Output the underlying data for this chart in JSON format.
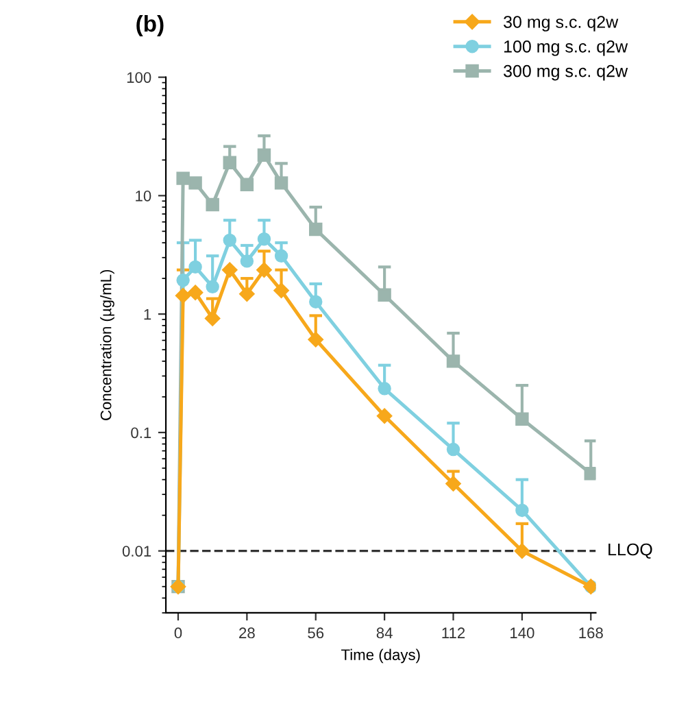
{
  "chart_data": {
    "type": "line",
    "title": "(b)",
    "xlabel": "Time (days)",
    "ylabel": "Concentration (µg/mL)",
    "x": [
      0,
      2,
      7,
      14,
      21,
      28,
      35,
      42,
      56,
      84,
      112,
      140,
      168
    ],
    "series": [
      {
        "name": "30 mg s.c. q2w",
        "color": "#f7a81b",
        "marker": "diamond",
        "values": [
          0.005,
          1.43,
          1.52,
          0.92,
          2.36,
          1.48,
          2.36,
          1.58,
          0.61,
          0.138,
          0.037,
          0.01,
          0.005
        ],
        "errors": [
          null,
          [
            1.43,
            2.36
          ],
          null,
          [
            0.92,
            1.35
          ],
          null,
          [
            1.48,
            2.0
          ],
          [
            2.36,
            3.4
          ],
          [
            1.58,
            2.36
          ],
          [
            0.61,
            0.97
          ],
          null,
          [
            0.037,
            0.047
          ],
          [
            0.01,
            0.017
          ],
          null
        ]
      },
      {
        "name": "100 mg s.c. q2w",
        "color": "#7fd0e0",
        "marker": "circle",
        "values": [
          0.005,
          1.93,
          2.5,
          1.7,
          4.2,
          2.8,
          4.3,
          3.1,
          1.27,
          0.235,
          0.072,
          0.022,
          0.005
        ],
        "errors": [
          null,
          [
            1.93,
            4.0
          ],
          [
            2.5,
            4.2
          ],
          [
            1.7,
            3.1
          ],
          [
            4.2,
            6.2
          ],
          [
            2.8,
            3.8
          ],
          [
            4.3,
            6.2
          ],
          [
            3.1,
            4.0
          ],
          [
            1.27,
            1.8
          ],
          [
            0.235,
            0.37
          ],
          [
            0.072,
            0.12
          ],
          [
            0.022,
            0.04
          ],
          null
        ]
      },
      {
        "name": "300 mg s.c. q2w",
        "color": "#9bb5ad",
        "marker": "square",
        "values": [
          0.005,
          14,
          12.8,
          8.4,
          19,
          12.4,
          22,
          12.8,
          5.2,
          1.45,
          0.4,
          0.13,
          0.045
        ],
        "errors": [
          null,
          null,
          null,
          null,
          [
            19,
            26
          ],
          null,
          [
            22,
            32
          ],
          [
            12.8,
            18.7
          ],
          [
            5.2,
            8
          ],
          [
            1.45,
            2.5
          ],
          [
            0.4,
            0.69
          ],
          [
            0.13,
            0.25
          ],
          [
            0.045,
            0.085
          ]
        ]
      }
    ],
    "log": "y",
    "xlim": [
      -5,
      170
    ],
    "xticks": [
      0,
      28,
      56,
      84,
      112,
      140,
      168
    ],
    "ylim": [
      0.003,
      100
    ],
    "yticks": [
      100,
      10,
      1,
      0.1,
      0.01
    ],
    "ref_lines": [
      {
        "axis": "y",
        "value": 0.01,
        "label": "LLOQ",
        "color": "#333333",
        "line_style": "dashed"
      }
    ],
    "legend": "top right",
    "grid": false
  }
}
